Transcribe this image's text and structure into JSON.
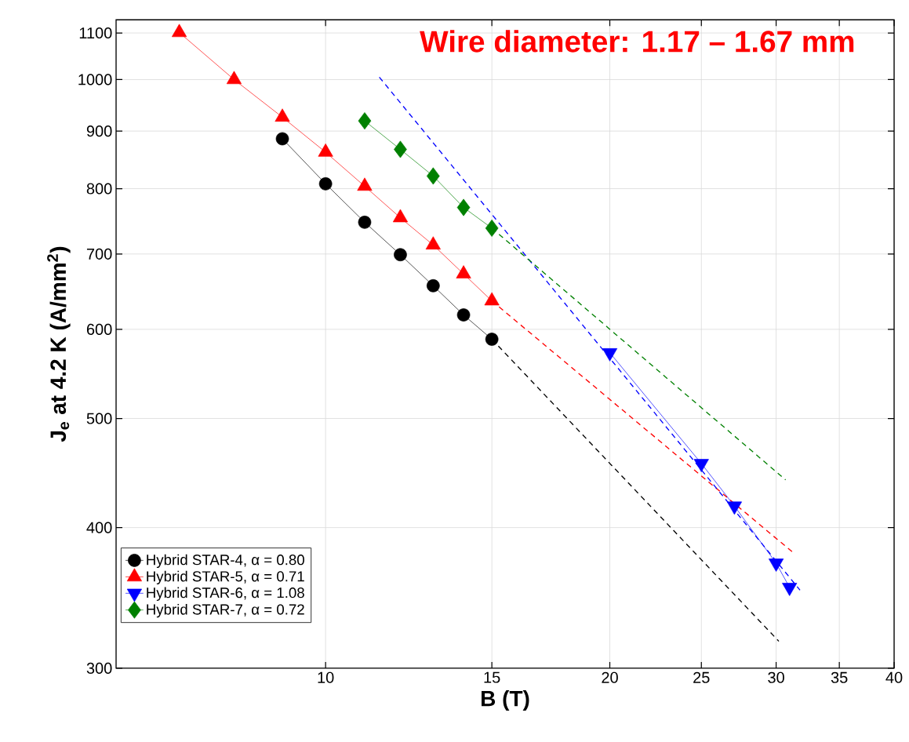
{
  "chart_data": {
    "type": "line",
    "xlabel": "B (T)",
    "ylabel": "J$_{e}$ at 4.2 K (A/mm$^{2}$)",
    "annotations": [
      "**Wire diameter: 1.17 – 1.67 mm**"
    ],
    "log": "xy",
    "xlim": [
      6,
      40
    ],
    "ylim": [
      300,
      1130
    ],
    "xticks": [
      10,
      15,
      20,
      25,
      30,
      35,
      40
    ],
    "yticks": [
      300,
      400,
      500,
      600,
      700,
      800,
      900,
      1000,
      1100
    ],
    "grid": true,
    "legend": "bottom left",
    "series": [
      {
        "name": "Hybrid STAR-4, α = 0.80",
        "color": "#000000",
        "marker": "circle",
        "line_style": "solid",
        "x": [
          9,
          10,
          11,
          12,
          13,
          14,
          15
        ],
        "values": [
          886,
          808,
          747,
          699,
          656,
          618,
          588
        ]
      },
      {
        "name": "Hybrid STAR-5, α = 0.71",
        "color": "#ff0000",
        "marker": "triangle",
        "line_style": "solid",
        "x": [
          7,
          8,
          9,
          10,
          11,
          12,
          13,
          14,
          15
        ],
        "values": [
          1101,
          1000,
          926,
          862,
          804,
          754,
          713,
          672,
          636
        ]
      },
      {
        "name": "Hybrid STAR-6, α = 1.08",
        "color": "#0000ff",
        "marker": "triangle-down",
        "line_style": "solid",
        "x": [
          20,
          25,
          27.1,
          30,
          31
        ],
        "values": [
          572,
          456,
          418,
          372,
          354
        ]
      },
      {
        "name": "Hybrid STAR-7, α = 0.72",
        "color": "#008000",
        "marker": "diamond",
        "line_style": "solid",
        "x": [
          11,
          12,
          13,
          14,
          15
        ],
        "values": [
          919,
          867,
          821,
          770,
          738
        ]
      },
      {
        "color": "#000000",
        "marker": "none",
        "line_style": "dashed",
        "x": [
          15,
          30.2
        ],
        "values": [
          588,
          317
        ]
      },
      {
        "color": "#ff0000",
        "marker": "none",
        "line_style": "dashed",
        "x": [
          15,
          31.4
        ],
        "values": [
          636,
          379
        ]
      },
      {
        "color": "#0000ff",
        "marker": "none",
        "line_style": "dashed",
        "x": [
          11.4,
          31.8
        ],
        "values": [
          1005,
          352
        ]
      },
      {
        "color": "#008000",
        "marker": "none",
        "line_style": "dashed",
        "x": [
          15,
          30.7
        ],
        "values": [
          738,
          441
        ]
      }
    ]
  }
}
